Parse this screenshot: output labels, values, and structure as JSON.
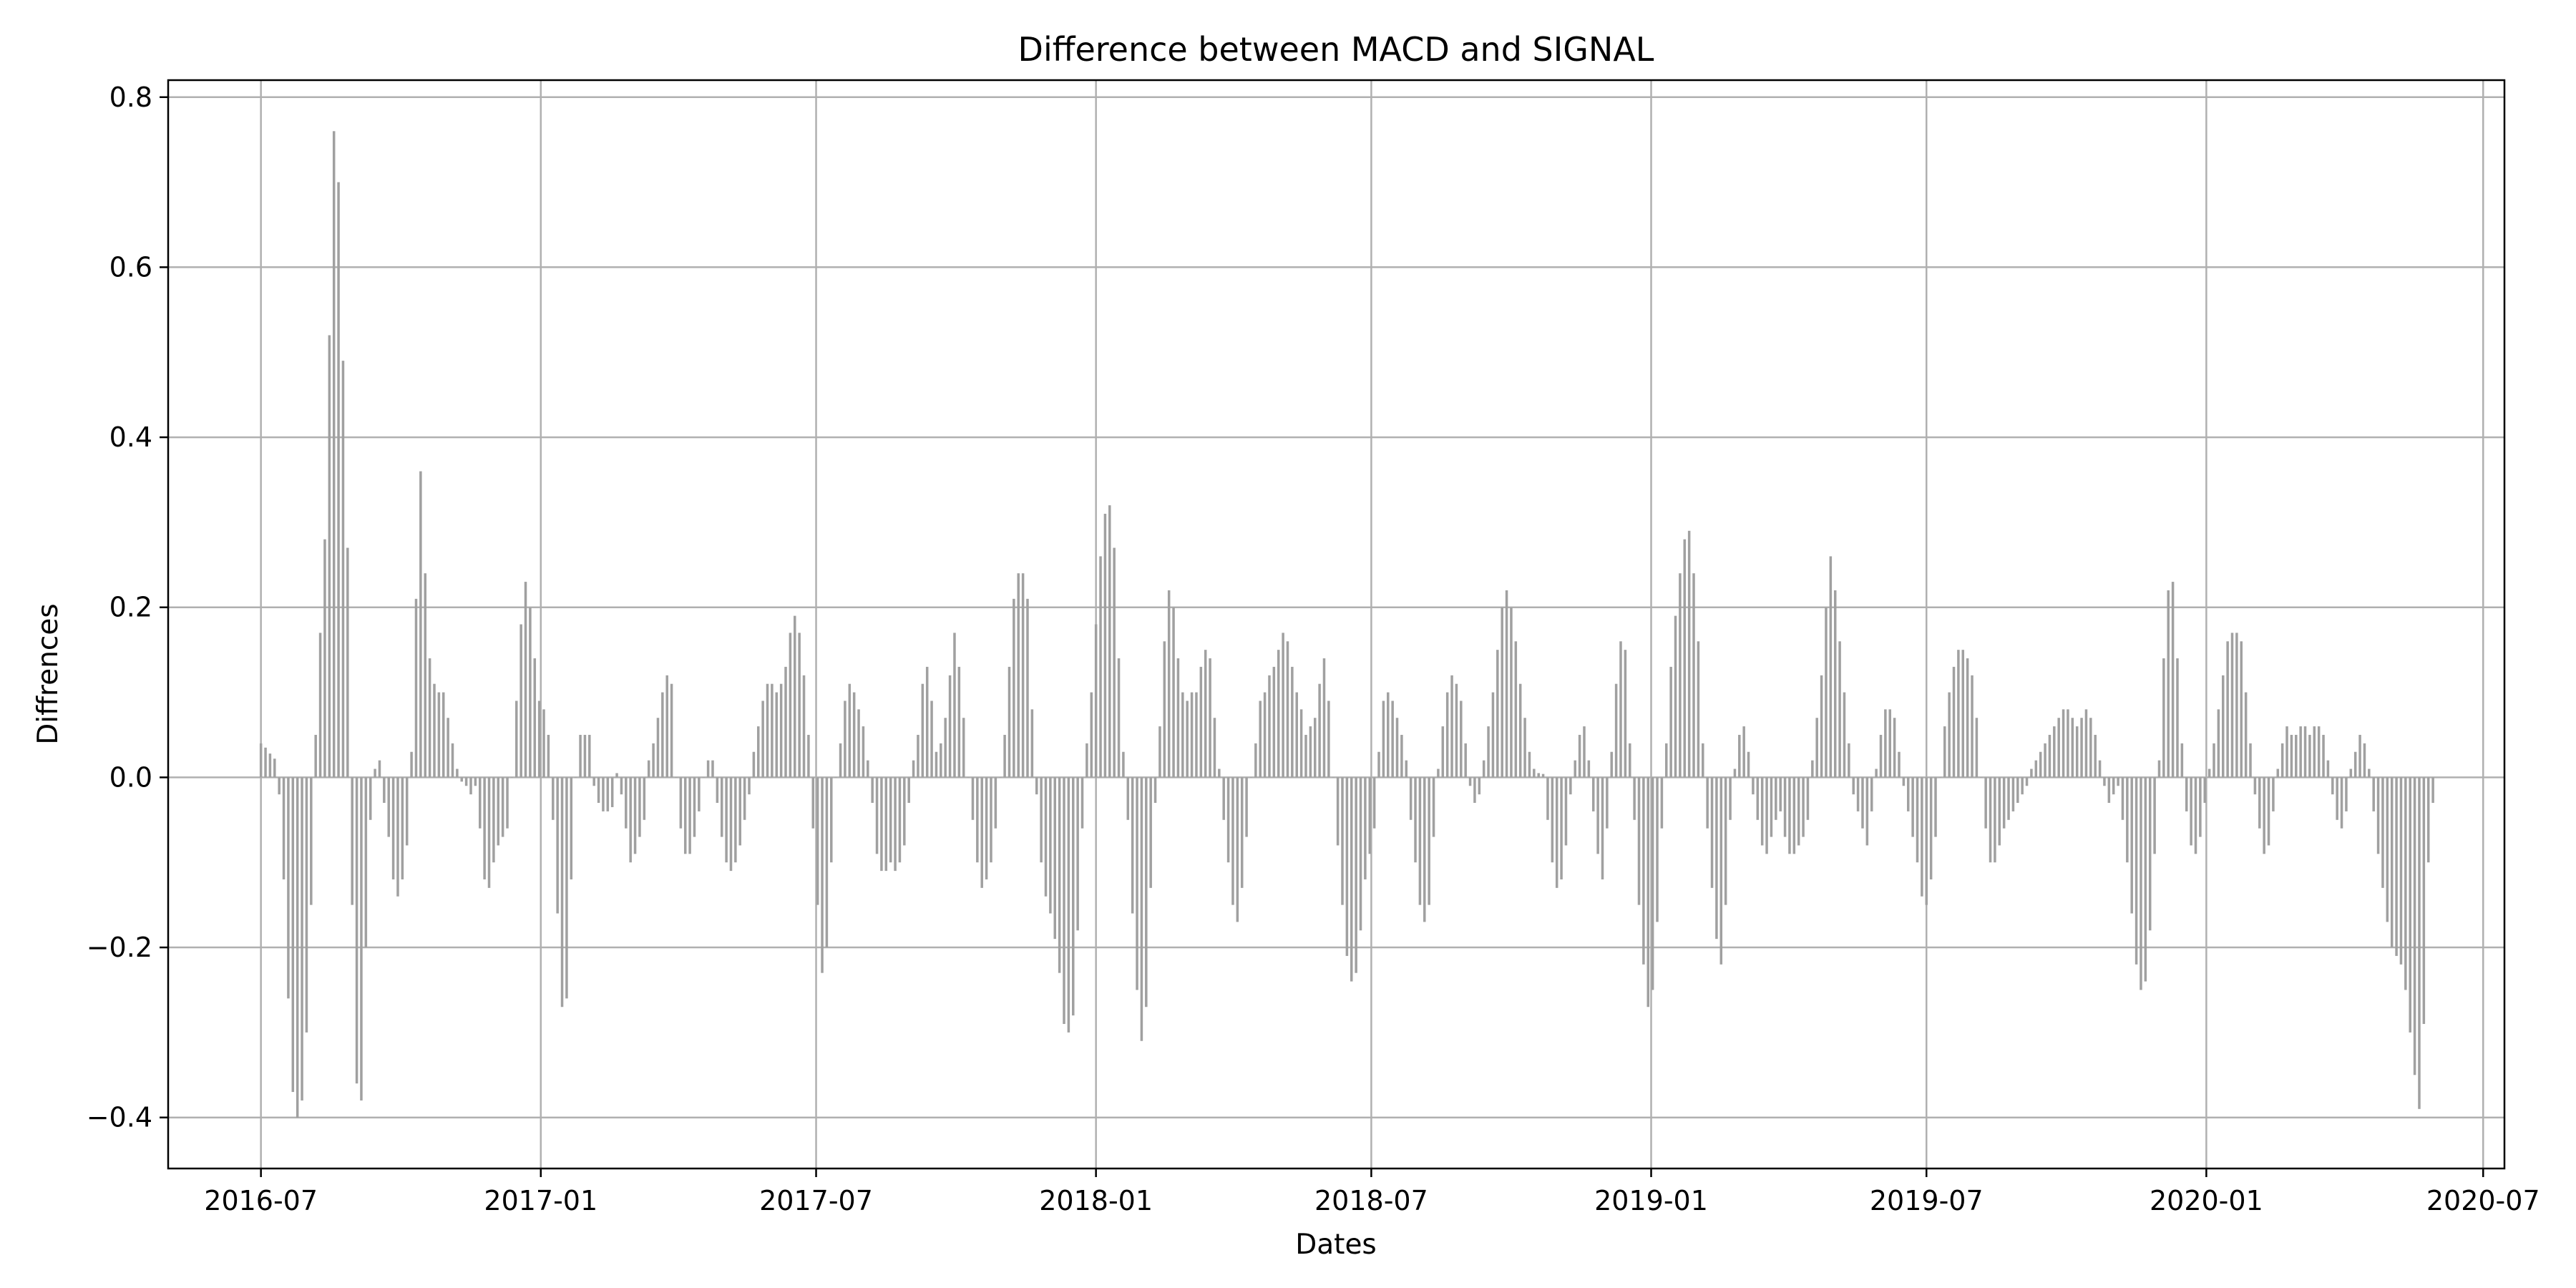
{
  "chart_data": {
    "type": "bar",
    "title": "Difference between MACD and SIGNAL",
    "xlabel": "Dates",
    "ylabel": "Diffrences",
    "xlim": [
      "2016-05-01",
      "2020-07-15"
    ],
    "ylim": [
      -0.46,
      0.82
    ],
    "grid": true,
    "bar_color": "#a0a0a0",
    "x_ticks": [
      {
        "date": "2016-07-01",
        "label": "2016-07"
      },
      {
        "date": "2017-01-01",
        "label": "2017-01"
      },
      {
        "date": "2017-07-01",
        "label": "2017-07"
      },
      {
        "date": "2018-01-01",
        "label": "2018-01"
      },
      {
        "date": "2018-07-01",
        "label": "2018-07"
      },
      {
        "date": "2019-01-01",
        "label": "2019-01"
      },
      {
        "date": "2019-07-01",
        "label": "2019-07"
      },
      {
        "date": "2020-01-01",
        "label": "2020-01"
      },
      {
        "date": "2020-07-01",
        "label": "2020-07"
      }
    ],
    "y_ticks": [
      {
        "value": -0.4,
        "label": "−0.4"
      },
      {
        "value": -0.2,
        "label": "−0.2"
      },
      {
        "value": 0.0,
        "label": "0.0"
      },
      {
        "value": 0.2,
        "label": "0.2"
      },
      {
        "value": 0.4,
        "label": "0.4"
      },
      {
        "value": 0.6,
        "label": "0.6"
      },
      {
        "value": 0.8,
        "label": "0.8"
      }
    ],
    "series": [
      {
        "x_start": "2016-07-01",
        "x_step_days": 3,
        "values": [
          0.04,
          0.035,
          0.028,
          0.022,
          -0.02,
          -0.12,
          -0.26,
          -0.37,
          -0.4,
          -0.38,
          -0.3,
          -0.15,
          0.05,
          0.17,
          0.28,
          0.52,
          0.76,
          0.7,
          0.49,
          0.27,
          -0.15,
          -0.36,
          -0.38,
          -0.2,
          -0.05,
          0.01,
          0.02,
          -0.03,
          -0.07,
          -0.12,
          -0.14,
          -0.12,
          -0.08,
          0.03,
          0.21,
          0.36,
          0.24,
          0.14,
          0.11,
          0.1,
          0.1,
          0.07,
          0.04,
          0.01,
          -0.005,
          -0.01,
          -0.02,
          -0.01,
          -0.06,
          -0.12,
          -0.13,
          -0.1,
          -0.08,
          -0.07,
          -0.06,
          0.0,
          0.09,
          0.18,
          0.23,
          0.2,
          0.14,
          0.09,
          0.08,
          0.05,
          -0.05,
          -0.16,
          -0.27,
          -0.26,
          -0.12,
          0.0,
          0.05,
          0.05,
          0.05,
          -0.01,
          -0.03,
          -0.04,
          -0.04,
          -0.035,
          0.005,
          -0.02,
          -0.06,
          -0.1,
          -0.09,
          -0.07,
          -0.05,
          0.02,
          0.04,
          0.07,
          0.1,
          0.12,
          0.11,
          0.0,
          -0.06,
          -0.09,
          -0.09,
          -0.07,
          -0.04,
          0.0,
          0.02,
          0.02,
          -0.03,
          -0.07,
          -0.1,
          -0.11,
          -0.1,
          -0.08,
          -0.05,
          -0.02,
          0.03,
          0.06,
          0.09,
          0.11,
          0.11,
          0.1,
          0.11,
          0.13,
          0.17,
          0.19,
          0.17,
          0.12,
          0.05,
          -0.06,
          -0.15,
          -0.23,
          -0.2,
          -0.1,
          0.0,
          0.04,
          0.09,
          0.11,
          0.1,
          0.08,
          0.06,
          0.02,
          -0.03,
          -0.09,
          -0.11,
          -0.11,
          -0.1,
          -0.11,
          -0.1,
          -0.08,
          -0.03,
          0.02,
          0.05,
          0.11,
          0.13,
          0.09,
          0.03,
          0.04,
          0.07,
          0.12,
          0.17,
          0.13,
          0.07,
          0.0,
          -0.05,
          -0.1,
          -0.13,
          -0.12,
          -0.1,
          -0.06,
          0.0,
          0.05,
          0.13,
          0.21,
          0.24,
          0.24,
          0.21,
          0.08,
          -0.02,
          -0.1,
          -0.14,
          -0.16,
          -0.19,
          -0.23,
          -0.29,
          -0.3,
          -0.28,
          -0.18,
          -0.06,
          0.04,
          0.1,
          0.18,
          0.26,
          0.31,
          0.32,
          0.27,
          0.14,
          0.03,
          -0.05,
          -0.16,
          -0.25,
          -0.31,
          -0.27,
          -0.13,
          -0.03,
          0.06,
          0.16,
          0.22,
          0.2,
          0.14,
          0.1,
          0.09,
          0.1,
          0.1,
          0.13,
          0.15,
          0.14,
          0.07,
          0.01,
          -0.05,
          -0.1,
          -0.15,
          -0.17,
          -0.13,
          -0.07,
          0.0,
          0.04,
          0.09,
          0.1,
          0.12,
          0.13,
          0.15,
          0.17,
          0.16,
          0.13,
          0.1,
          0.08,
          0.05,
          0.06,
          0.07,
          0.11,
          0.14,
          0.09,
          0.0,
          -0.08,
          -0.15,
          -0.21,
          -0.24,
          -0.23,
          -0.18,
          -0.12,
          -0.09,
          -0.06,
          0.03,
          0.09,
          0.1,
          0.09,
          0.07,
          0.05,
          0.02,
          -0.05,
          -0.1,
          -0.15,
          -0.17,
          -0.15,
          -0.07,
          0.01,
          0.06,
          0.1,
          0.12,
          0.11,
          0.09,
          0.04,
          -0.01,
          -0.03,
          -0.02,
          0.02,
          0.06,
          0.1,
          0.15,
          0.2,
          0.22,
          0.2,
          0.16,
          0.11,
          0.07,
          0.03,
          0.01,
          0.005,
          0.004,
          -0.05,
          -0.1,
          -0.13,
          -0.12,
          -0.08,
          -0.02,
          0.02,
          0.05,
          0.06,
          0.02,
          -0.04,
          -0.09,
          -0.12,
          -0.06,
          0.03,
          0.11,
          0.16,
          0.15,
          0.04,
          -0.05,
          -0.15,
          -0.22,
          -0.27,
          -0.25,
          -0.17,
          -0.06,
          0.04,
          0.13,
          0.19,
          0.24,
          0.28,
          0.29,
          0.24,
          0.16,
          0.04,
          -0.06,
          -0.13,
          -0.19,
          -0.22,
          -0.15,
          -0.05,
          0.01,
          0.05,
          0.06,
          0.03,
          -0.02,
          -0.05,
          -0.08,
          -0.09,
          -0.07,
          -0.05,
          -0.04,
          -0.07,
          -0.09,
          -0.09,
          -0.08,
          -0.07,
          -0.05,
          0.02,
          0.07,
          0.12,
          0.2,
          0.26,
          0.22,
          0.16,
          0.1,
          0.04,
          -0.02,
          -0.04,
          -0.06,
          -0.08,
          -0.04,
          0.01,
          0.05,
          0.08,
          0.08,
          0.07,
          0.03,
          -0.01,
          -0.04,
          -0.07,
          -0.1,
          -0.14,
          -0.15,
          -0.12,
          -0.07,
          0.0,
          0.06,
          0.1,
          0.13,
          0.15,
          0.15,
          0.14,
          0.12,
          0.07,
          0.0,
          -0.06,
          -0.1,
          -0.1,
          -0.08,
          -0.06,
          -0.05,
          -0.04,
          -0.03,
          -0.02,
          -0.01,
          0.01,
          0.02,
          0.03,
          0.04,
          0.05,
          0.06,
          0.07,
          0.08,
          0.08,
          0.07,
          0.06,
          0.07,
          0.08,
          0.07,
          0.05,
          0.02,
          -0.01,
          -0.03,
          -0.02,
          -0.01,
          -0.05,
          -0.1,
          -0.16,
          -0.22,
          -0.25,
          -0.24,
          -0.18,
          -0.09,
          0.02,
          0.14,
          0.22,
          0.23,
          0.14,
          0.04,
          -0.04,
          -0.08,
          -0.09,
          -0.07,
          -0.03,
          0.01,
          0.04,
          0.08,
          0.12,
          0.16,
          0.17,
          0.17,
          0.16,
          0.1,
          0.04,
          -0.02,
          -0.06,
          -0.09,
          -0.08,
          -0.04,
          0.01,
          0.04,
          0.06,
          0.05,
          0.05,
          0.06,
          0.06,
          0.05,
          0.06,
          0.06,
          0.05,
          0.02,
          -0.02,
          -0.05,
          -0.06,
          -0.04,
          0.01,
          0.03,
          0.05,
          0.04,
          0.01,
          -0.04,
          -0.09,
          -0.13,
          -0.17,
          -0.2,
          -0.21,
          -0.22,
          -0.25,
          -0.3,
          -0.35,
          -0.39,
          -0.29,
          -0.1,
          -0.03
        ]
      }
    ]
  }
}
